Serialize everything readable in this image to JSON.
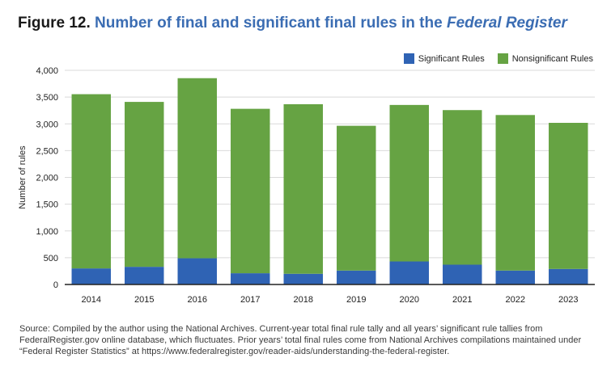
{
  "header": {
    "lead": "Figure 12.",
    "main": "Number of final and significant final rules in the",
    "emphasis": "Federal Register"
  },
  "source": "Source: Compiled by the author using the National Archives. Current-year total final rule tally and all years’ significant rule tallies from FederalRegister.gov online database, which fluctuates.  Prior years’ total final rules come from National Archives compilations maintained under “Federal Register Statistics” at https://www.federalregister.gov/reader-aids/understanding-the-federal-register.",
  "chart_data": {
    "type": "bar",
    "stacked": true,
    "categories": [
      "2014",
      "2015",
      "2016",
      "2017",
      "2018",
      "2019",
      "2020",
      "2021",
      "2022",
      "2023"
    ],
    "series": [
      {
        "name": "Significant Rules",
        "color": "#2f63b4",
        "values": [
          300,
          330,
          490,
          210,
          200,
          260,
          430,
          370,
          260,
          290
        ]
      },
      {
        "name": "Nonsignificant Rules",
        "color": "#66a343",
        "values": [
          3254,
          3080,
          3363,
          3071,
          3167,
          2704,
          2923,
          2887,
          2905,
          2729
        ]
      }
    ],
    "ylabel": "Number of rules",
    "xlabel": "",
    "ylim": [
      0,
      4000
    ],
    "yticks": [
      0,
      500,
      1000,
      1500,
      2000,
      2500,
      3000,
      3500,
      4000
    ],
    "ytick_labels": [
      "0",
      "500",
      "1,000",
      "1,500",
      "2,000",
      "2,500",
      "3,000",
      "3,500",
      "4,000"
    ],
    "grid": true,
    "legend": "top-right"
  }
}
